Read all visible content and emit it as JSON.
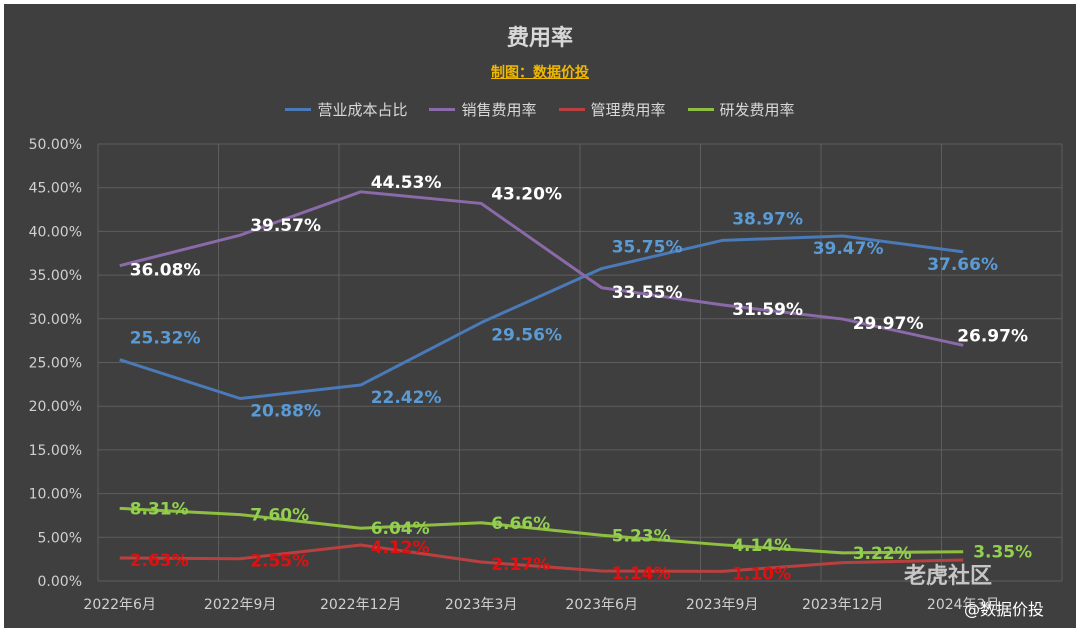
{
  "chart_data": {
    "type": "line",
    "title": "费用率",
    "subtitle": "制图：数据价投",
    "categories": [
      "2022年6月",
      "2022年9月",
      "2022年12月",
      "2023年3月",
      "2023年6月",
      "2023年9月",
      "2023年12月",
      "2024年3月"
    ],
    "ylim": [
      0,
      50
    ],
    "yticks": [
      "0.00%",
      "5.00%",
      "10.00%",
      "15.00%",
      "20.00%",
      "25.00%",
      "30.00%",
      "35.00%",
      "40.00%",
      "45.00%",
      "50.00%"
    ],
    "grid": true,
    "legend_position": "top",
    "series": [
      {
        "name": "营业成本占比",
        "color": "#4a7ab8",
        "label_color": "#5b9bd5",
        "values": [
          25.32,
          20.88,
          22.42,
          29.56,
          35.75,
          38.97,
          39.47,
          37.66
        ],
        "labels": [
          "25.32%",
          "20.88%",
          "22.42%",
          "29.56%",
          "35.75%",
          "38.97%",
          "39.47%",
          "37.66%"
        ]
      },
      {
        "name": "销售费用率",
        "color": "#8a6aa8",
        "label_color": "#ffffff",
        "values": [
          36.08,
          39.57,
          44.53,
          43.2,
          33.55,
          31.59,
          29.97,
          26.97
        ],
        "labels": [
          "36.08%",
          "39.57%",
          "44.53%",
          "43.20%",
          "33.55%",
          "31.59%",
          "29.97%",
          "26.97%"
        ]
      },
      {
        "name": "管理费用率",
        "color": "#b84040",
        "label_color": "#e01010",
        "values": [
          2.63,
          2.55,
          4.12,
          2.17,
          1.14,
          1.1,
          2.1,
          2.4
        ],
        "labels": [
          "2.63%",
          "2.55%",
          "4.12%",
          "2.17%",
          "1.14%",
          "1.10%",
          "",
          ""
        ]
      },
      {
        "name": "研发费用率",
        "color": "#8fbf40",
        "label_color": "#92d050",
        "values": [
          8.31,
          7.6,
          6.04,
          6.66,
          5.23,
          4.14,
          3.22,
          3.35
        ],
        "labels": [
          "8.31%",
          "7.60%",
          "6.04%",
          "6.66%",
          "5.23%",
          "4.14%",
          "3.22%",
          "3.35%"
        ]
      }
    ]
  },
  "watermark": {
    "logo": "老虎社区",
    "author": "@数据价投"
  }
}
